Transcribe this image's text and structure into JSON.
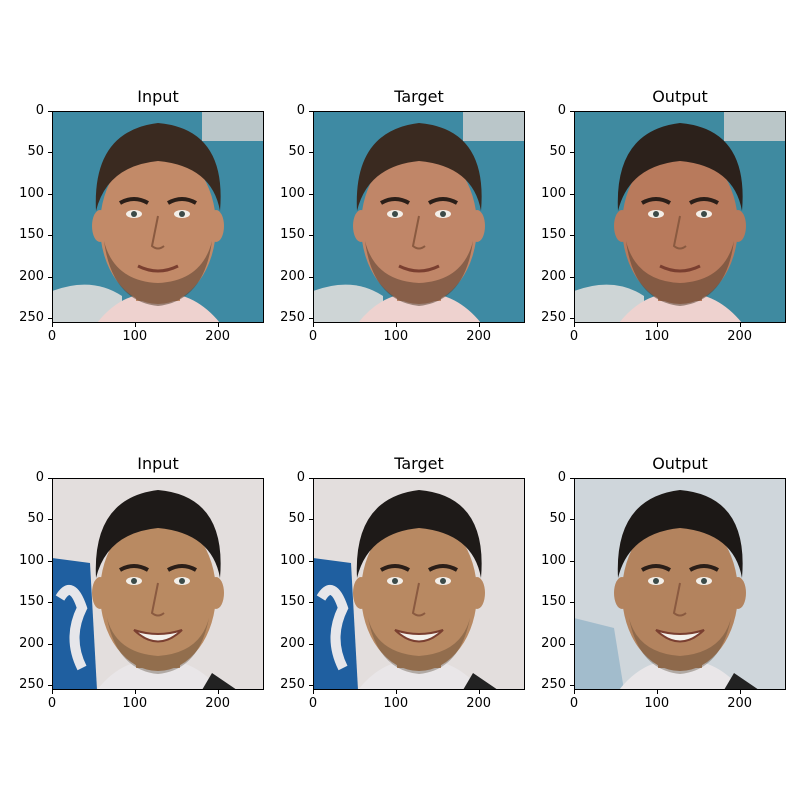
{
  "figure": {
    "panels": [
      {
        "title": "Input",
        "subject": "man-with-stubble",
        "bg": "#3e8aa3",
        "skin": "#c28a68",
        "hair": "#3a2a20"
      },
      {
        "title": "Target",
        "subject": "man-with-stubble",
        "bg": "#3e8aa3",
        "skin": "#c08668",
        "hair": "#3a2a20"
      },
      {
        "title": "Output",
        "subject": "man-with-stubble",
        "bg": "#3f8aa0",
        "skin": "#b87a5c",
        "hair": "#2c211b"
      },
      {
        "title": "Input",
        "subject": "smiling-man",
        "bg": "#e3dedd",
        "skin": "#b98a62",
        "hair": "#1e1a18"
      },
      {
        "title": "Target",
        "subject": "smiling-man",
        "bg": "#e3dedd",
        "skin": "#b88962",
        "hair": "#1e1a18"
      },
      {
        "title": "Output",
        "subject": "smiling-man",
        "bg": "#cfd6db",
        "skin": "#b3835e",
        "hair": "#1c1816"
      }
    ],
    "y_ticks": [
      "0",
      "50",
      "100",
      "150",
      "200",
      "250"
    ],
    "x_ticks": [
      "0",
      "100",
      "200"
    ]
  }
}
